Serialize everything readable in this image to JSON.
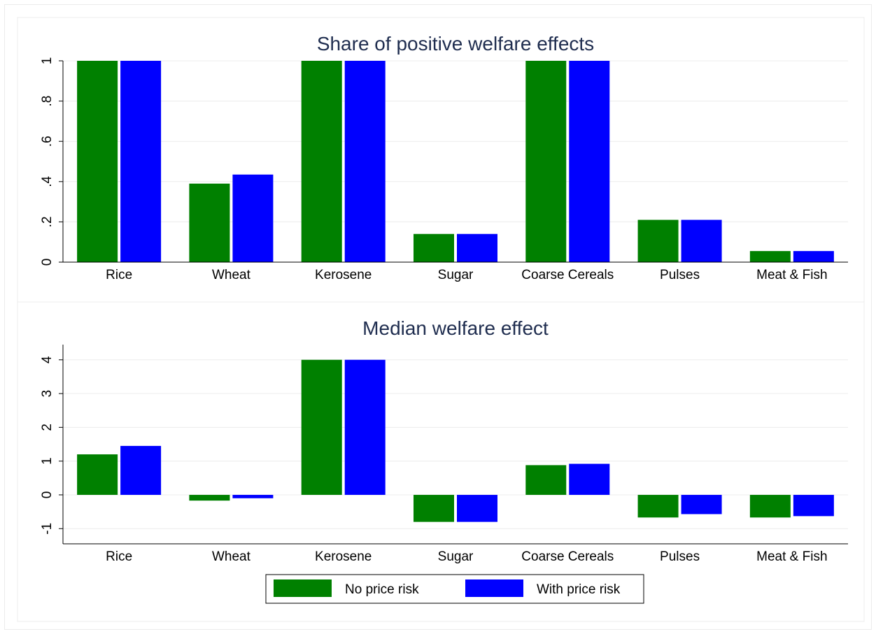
{
  "chart_data": [
    {
      "type": "bar",
      "title": "Share of positive welfare effects",
      "xlabel": "",
      "ylabel": "",
      "categories": [
        "Rice",
        "Wheat",
        "Kerosene",
        "Sugar",
        "Coarse Cereals",
        "Pulses",
        "Meat & Fish"
      ],
      "series": [
        {
          "name": "No price risk",
          "color": "#008000",
          "values": [
            1.0,
            0.39,
            1.0,
            0.14,
            1.0,
            0.21,
            0.055
          ]
        },
        {
          "name": "With price risk",
          "color": "#0000ff",
          "values": [
            1.0,
            0.435,
            1.0,
            0.14,
            1.0,
            0.21,
            0.055
          ]
        }
      ],
      "ylim": [
        0,
        1.0
      ],
      "yticks": [
        0,
        0.2,
        0.4,
        0.6,
        0.8,
        1
      ],
      "ytick_labels": [
        "0",
        ".2",
        ".4",
        ".6",
        ".8",
        "1"
      ],
      "grid": true
    },
    {
      "type": "bar",
      "title": "Median welfare effect",
      "xlabel": "",
      "ylabel": "",
      "categories": [
        "Rice",
        "Wheat",
        "Kerosene",
        "Sugar",
        "Coarse Cereals",
        "Pulses",
        "Meat & Fish"
      ],
      "series": [
        {
          "name": "No price risk",
          "color": "#008000",
          "values": [
            1.2,
            -0.17,
            4.0,
            -0.8,
            0.88,
            -0.67,
            -0.67
          ]
        },
        {
          "name": "With price risk",
          "color": "#0000ff",
          "values": [
            1.45,
            -0.1,
            4.0,
            -0.8,
            0.92,
            -0.57,
            -0.63
          ]
        }
      ],
      "ylim": [
        -1.45,
        4.45
      ],
      "yticks": [
        -1,
        0,
        1,
        2,
        3,
        4
      ],
      "ytick_labels": [
        "-1",
        "0",
        "1",
        "2",
        "3",
        "4"
      ],
      "grid": true
    }
  ],
  "legend": {
    "position": "bottom-center",
    "items": [
      {
        "label": "No price risk",
        "color": "#008000"
      },
      {
        "label": "With price risk",
        "color": "#0000ff"
      }
    ]
  }
}
